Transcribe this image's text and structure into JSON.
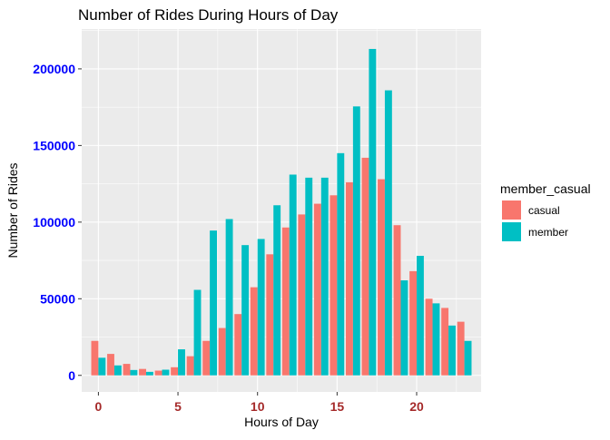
{
  "chart_data": {
    "type": "bar",
    "title": "Number of Rides During Hours of Day",
    "xlabel": "Hours of Day",
    "ylabel": "Number of Rides",
    "x": [
      0,
      1,
      2,
      3,
      4,
      5,
      6,
      7,
      8,
      9,
      10,
      11,
      12,
      13,
      14,
      15,
      16,
      17,
      18,
      19,
      20,
      21,
      22,
      23
    ],
    "xlim": [
      -1.05,
      24.05
    ],
    "ylim": [
      -10800,
      226000
    ],
    "x_ticks": [
      0,
      5,
      10,
      15,
      20
    ],
    "x_tick_labels": [
      "0",
      "5",
      "10",
      "15",
      "20"
    ],
    "y_ticks": [
      0,
      50000,
      100000,
      150000,
      200000
    ],
    "y_tick_labels": [
      "0",
      "50000",
      "100000",
      "150000",
      "200000"
    ],
    "grid": true,
    "legend_title": "member_casual",
    "legend_position": "right",
    "series": [
      {
        "name": "casual",
        "color": "#F8766D",
        "values": [
          22500,
          14000,
          7500,
          4200,
          3100,
          5300,
          12500,
          22500,
          30900,
          40000,
          57500,
          79000,
          96500,
          105000,
          112000,
          117500,
          126000,
          142000,
          128000,
          98000,
          68000,
          50000,
          44000,
          35000
        ]
      },
      {
        "name": "member",
        "color": "#00BFC4",
        "values": [
          11500,
          6500,
          3500,
          2300,
          3700,
          17000,
          55800,
          94500,
          102000,
          85000,
          89000,
          111000,
          131000,
          129000,
          129000,
          145000,
          175500,
          213000,
          186000,
          62000,
          78000,
          47000,
          32500,
          22500
        ]
      }
    ]
  },
  "styles": {
    "panel_bg": "#EBEBEB",
    "grid_major": "#FFFFFF",
    "x_tick_color": "#A52A2A",
    "y_tick_color": "#0000FF",
    "text_color": "#000000"
  }
}
